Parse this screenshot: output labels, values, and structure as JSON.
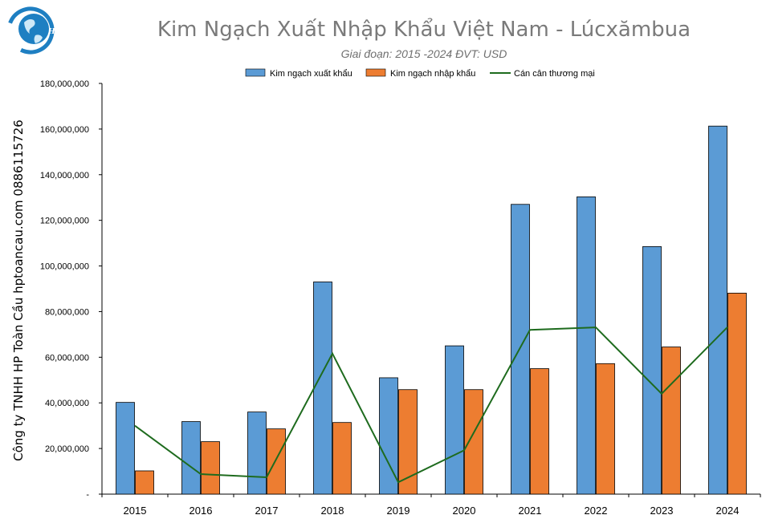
{
  "logo": {
    "text": "HP"
  },
  "side_label": "Công ty TNHH HP Toàn Cầu hptoancau.com 0886115726",
  "colors": {
    "export": "#5b9bd5",
    "import": "#ed7d31",
    "balance": "#1e6b1e",
    "title": "#7a7a7a"
  },
  "chart_data": {
    "type": "bar",
    "title": "Kim Ngạch Xuất Nhập Khẩu Việt Nam - Lúcxămbua",
    "subtitle": "Giai đoạn: 2015 -2024  ĐVT: USD",
    "categories": [
      "2015",
      "2016",
      "2017",
      "2018",
      "2019",
      "2020",
      "2021",
      "2022",
      "2023",
      "2024"
    ],
    "series": [
      {
        "name": "Kim ngạch xuất khẩu",
        "type": "bar",
        "values": [
          40200000,
          31800000,
          36000000,
          93000000,
          51000000,
          65000000,
          127000000,
          130300000,
          108500000,
          161300000
        ]
      },
      {
        "name": "Kim ngạch nhập khẩu",
        "type": "bar",
        "values": [
          10200000,
          23000000,
          28600000,
          31400000,
          45800000,
          45800000,
          55000000,
          57200000,
          64500000,
          88100000
        ]
      },
      {
        "name": "Cán cân thương mại",
        "type": "line",
        "values": [
          30000000,
          8800000,
          7400000,
          61600000,
          5200000,
          19200000,
          72000000,
          73100000,
          44000000,
          73200000
        ]
      }
    ],
    "ylim": [
      0,
      180000000
    ],
    "yticks": [
      0,
      20000000,
      40000000,
      60000000,
      80000000,
      100000000,
      120000000,
      140000000,
      160000000,
      180000000
    ],
    "ytick_labels": [
      "-",
      "20,000,000",
      "40,000,000",
      "60,000,000",
      "80,000,000",
      "100,000,000",
      "120,000,000",
      "140,000,000",
      "160,000,000",
      "180,000,000"
    ],
    "legend": "top-center",
    "grid": false
  }
}
